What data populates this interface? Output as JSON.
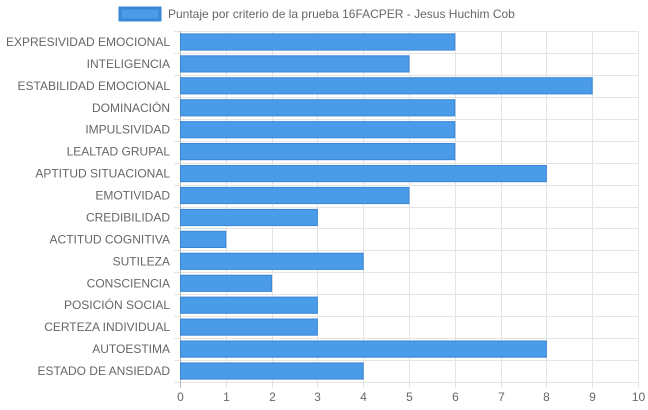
{
  "chart_data": {
    "type": "bar",
    "orientation": "horizontal",
    "categories": [
      "EXPRESIVIDAD EMOCIONAL",
      "INTELIGENCIA",
      "ESTABILIDAD EMOCIONAL",
      "DOMINACIÓN",
      "IMPULSIVIDAD",
      "LEALTAD GRUPAL",
      "APTITUD SITUACIONAL",
      "EMOTIVIDAD",
      "CREDIBILIDAD",
      "ACTITUD COGNITIVA",
      "SUTILEZA",
      "CONSCIENCIA",
      "POSICIÓN SOCIAL",
      "CERTEZA INDIVIDUAL",
      "AUTOESTIMA",
      "ESTADO DE ANSIEDAD"
    ],
    "series": [
      {
        "name": "Puntaje por criterio de la prueba 16FACPER - Jesus Huchim Cob",
        "values": [
          6,
          5,
          9,
          6,
          6,
          6,
          8,
          5,
          3,
          1,
          4,
          2,
          3,
          3,
          8,
          4
        ],
        "color": "#4a9be8",
        "border_color": "#3a86d6"
      }
    ],
    "xlim": [
      0,
      10
    ],
    "x_ticks": [
      "0",
      "1",
      "2",
      "3",
      "4",
      "5",
      "6",
      "7",
      "8",
      "9",
      "10"
    ],
    "grid": true,
    "legend_position": "top-center",
    "title": "",
    "xlabel": "",
    "ylabel": ""
  }
}
